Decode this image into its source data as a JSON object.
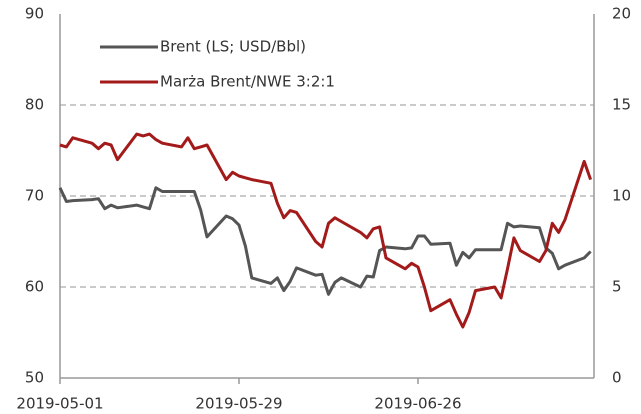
{
  "chart_data": {
    "type": "line",
    "x": [
      "2019-05-01",
      "2019-05-02",
      "2019-05-03",
      "2019-05-06",
      "2019-05-07",
      "2019-05-08",
      "2019-05-09",
      "2019-05-10",
      "2019-05-13",
      "2019-05-14",
      "2019-05-15",
      "2019-05-16",
      "2019-05-17",
      "2019-05-20",
      "2019-05-21",
      "2019-05-22",
      "2019-05-23",
      "2019-05-24",
      "2019-05-27",
      "2019-05-28",
      "2019-05-29",
      "2019-05-30",
      "2019-05-31",
      "2019-06-03",
      "2019-06-04",
      "2019-06-05",
      "2019-06-06",
      "2019-06-07",
      "2019-06-10",
      "2019-06-11",
      "2019-06-12",
      "2019-06-13",
      "2019-06-14",
      "2019-06-17",
      "2019-06-18",
      "2019-06-19",
      "2019-06-20",
      "2019-06-21",
      "2019-06-24",
      "2019-06-25",
      "2019-06-26",
      "2019-06-27",
      "2019-06-28",
      "2019-07-01",
      "2019-07-02",
      "2019-07-03",
      "2019-07-04",
      "2019-07-05",
      "2019-07-08",
      "2019-07-09",
      "2019-07-10",
      "2019-07-11",
      "2019-07-12",
      "2019-07-15",
      "2019-07-16",
      "2019-07-17",
      "2019-07-18",
      "2019-07-19",
      "2019-07-22",
      "2019-07-23"
    ],
    "series": [
      {
        "name": "Brent (LS; USD/Bbl)",
        "color": "#555555",
        "axis": "y",
        "values": [
          70.9,
          69.4,
          69.5,
          69.6,
          69.7,
          68.6,
          69.0,
          68.7,
          69.0,
          68.8,
          68.6,
          70.9,
          70.5,
          70.5,
          70.5,
          70.5,
          68.5,
          65.5,
          67.8,
          67.5,
          66.8,
          64.5,
          61.0,
          60.4,
          61.0,
          59.6,
          60.6,
          62.1,
          61.3,
          61.4,
          59.2,
          60.5,
          61.0,
          60.0,
          61.2,
          61.1,
          64.0,
          64.4,
          64.2,
          64.3,
          65.6,
          65.6,
          64.7,
          64.8,
          62.4,
          63.8,
          63.2,
          64.1,
          64.1,
          64.1,
          67.0,
          66.6,
          66.7,
          66.5,
          64.3,
          63.7,
          62.0,
          62.4,
          63.2,
          63.9
        ]
      },
      {
        "name": "Marża Brent/NWE 3:2:1",
        "color": "#a31a1a",
        "axis": "y2",
        "values": [
          12.8,
          12.7,
          13.2,
          12.9,
          12.6,
          12.9,
          12.8,
          12.0,
          13.4,
          13.3,
          13.4,
          13.1,
          12.9,
          12.7,
          13.2,
          12.6,
          12.7,
          12.8,
          10.9,
          11.3,
          11.1,
          11.0,
          10.9,
          10.7,
          9.6,
          8.8,
          9.2,
          9.1,
          7.5,
          7.2,
          8.5,
          8.8,
          8.6,
          8.0,
          7.7,
          8.2,
          8.3,
          6.6,
          6.0,
          6.3,
          6.1,
          5.0,
          3.7,
          4.3,
          3.5,
          2.8,
          3.6,
          4.8,
          5.0,
          4.4,
          6.0,
          7.7,
          7.0,
          6.4,
          7.0,
          8.5,
          8.0,
          8.7,
          11.9,
          10.9
        ]
      }
    ],
    "xticks": [
      "2019-05-01",
      "2019-05-29",
      "2019-06-26"
    ],
    "ylim": [
      50,
      90
    ],
    "yticks": [
      50,
      60,
      70,
      80,
      90
    ],
    "y2lim": [
      0,
      20
    ],
    "y2ticks": [
      0,
      5,
      10,
      15,
      20
    ],
    "grid": true,
    "legend": "upper left"
  }
}
